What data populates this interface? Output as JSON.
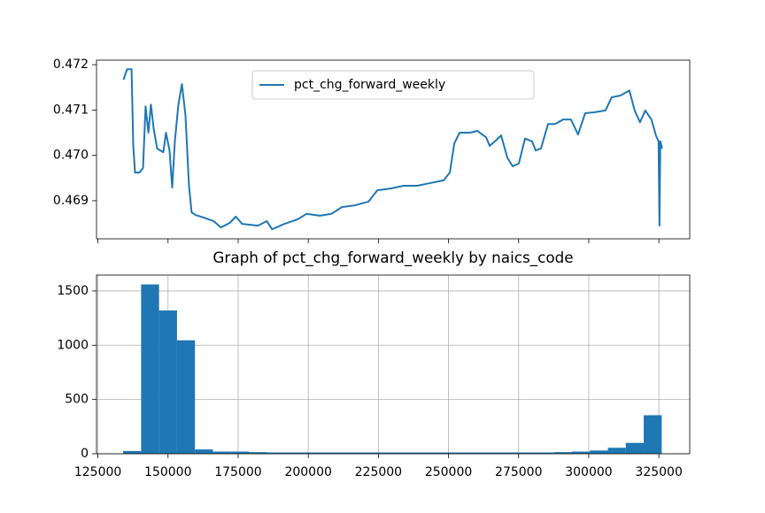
{
  "chart_data": [
    {
      "type": "line",
      "x": [
        134140,
        135400,
        137000,
        137600,
        138240,
        139800,
        141080,
        142000,
        143000,
        143900,
        144860,
        146120,
        148330,
        149270,
        150540,
        151480,
        152430,
        153690,
        154950,
        156210,
        157470,
        158420,
        160000,
        163150,
        166300,
        168820,
        171970,
        174180,
        176390,
        182060,
        185210,
        187100,
        191520,
        196250,
        199400,
        204130,
        208230,
        212010,
        216740,
        221470,
        224620,
        229350,
        234080,
        238810,
        243540,
        248270,
        250470,
        252050,
        253940,
        257730,
        260250,
        263400,
        264660,
        266560,
        268760,
        270970,
        272860,
        275060,
        277270,
        279790,
        281050,
        282950,
        285470,
        287990,
        290830,
        293660,
        296190,
        298710,
        301860,
        305960,
        308170,
        311320,
        314480,
        316370,
        318260,
        320150,
        322360,
        323940,
        324890,
        325200,
        325520,
        326150
      ],
      "series": [
        {
          "name": "pct_chg_forward_weekly",
          "color": "#1f77b4",
          "values": [
            0.47167,
            0.4719,
            0.4719,
            0.47021,
            0.46962,
            0.46962,
            0.46972,
            0.47108,
            0.4705,
            0.47112,
            0.4706,
            0.47015,
            0.47007,
            0.4705,
            0.47011,
            0.46929,
            0.47031,
            0.47112,
            0.47157,
            0.47089,
            0.46933,
            0.46874,
            0.46868,
            0.46862,
            0.46855,
            0.46841,
            0.46851,
            0.46865,
            0.46849,
            0.46845,
            0.46855,
            0.46837,
            0.46849,
            0.46859,
            0.46871,
            0.46867,
            0.46871,
            0.46886,
            0.4689,
            0.46898,
            0.46923,
            0.46927,
            0.46933,
            0.46933,
            0.46939,
            0.46945,
            0.46962,
            0.47026,
            0.4705,
            0.4705,
            0.47054,
            0.4704,
            0.47021,
            0.47031,
            0.47044,
            0.46995,
            0.46976,
            0.46982,
            0.47037,
            0.47031,
            0.47011,
            0.47015,
            0.47069,
            0.47069,
            0.47079,
            0.47079,
            0.47046,
            0.47093,
            0.47095,
            0.47099,
            0.47128,
            0.47132,
            0.47143,
            0.47099,
            0.47073,
            0.47099,
            0.47079,
            0.47044,
            0.47031,
            0.46845,
            0.47031,
            0.47015
          ]
        }
      ],
      "xlim": [
        124500,
        336000
      ],
      "xticks": [
        125000,
        150000,
        175000,
        200000,
        225000,
        250000,
        275000,
        300000,
        325000
      ],
      "ylim": [
        0.46816,
        0.4721
      ],
      "yticks": [
        0.469,
        {
          "value": 0.47,
          "label": "0.470"
        },
        0.471,
        0.472
      ],
      "legend": "upper center",
      "grid": false
    },
    {
      "type": "histogram",
      "title": "Graph of pct_chg_forward_weekly by naics_code",
      "color": "#1f77b4",
      "bins": [
        134000,
        140400,
        146800,
        153200,
        159600,
        166000,
        172400,
        178800,
        185200,
        191600,
        198000,
        204400,
        210800,
        217200,
        223600,
        230000,
        236400,
        242800,
        249200,
        255600,
        262000,
        268400,
        274800,
        281200,
        287600,
        294000,
        300400,
        306800,
        313200,
        319600,
        326000
      ],
      "values": [
        25,
        1560,
        1320,
        1045,
        40,
        20,
        20,
        15,
        12,
        12,
        12,
        12,
        12,
        12,
        12,
        12,
        12,
        12,
        12,
        12,
        12,
        12,
        12,
        12,
        15,
        20,
        30,
        55,
        100,
        355
      ],
      "xlim": [
        124500,
        336000
      ],
      "xticks": [
        125000,
        150000,
        175000,
        200000,
        225000,
        250000,
        275000,
        300000,
        325000
      ],
      "ylim": [
        0,
        1646
      ],
      "yticks": [
        0,
        500,
        1000,
        1500
      ],
      "grid": true
    }
  ]
}
